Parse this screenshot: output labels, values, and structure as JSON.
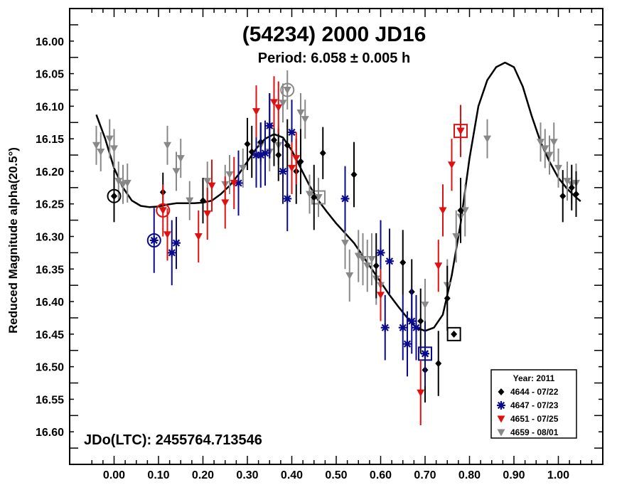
{
  "chart_data": {
    "type": "scatter",
    "title": "(54234) 2000 JD16",
    "subtitle": "Period: 6.058 ± 0.005 h",
    "xlabel": "",
    "ylabel": "Reduced Magnitude alpha(20.5°)",
    "xlim": [
      -0.1,
      1.1
    ],
    "ylim": [
      16.65,
      15.95
    ],
    "y_inverted": true,
    "xticks": [
      "0.00",
      "0.10",
      "0.20",
      "0.30",
      "0.40",
      "0.50",
      "0.60",
      "0.70",
      "0.80",
      "0.90",
      "1.00"
    ],
    "yticks": [
      "16.00",
      "16.05",
      "16.10",
      "16.15",
      "16.20",
      "16.25",
      "16.30",
      "16.35",
      "16.40",
      "16.45",
      "16.50",
      "16.55",
      "16.60"
    ],
    "annotation": "JDo(LTC): 2455764.713546",
    "legend": {
      "position": "bottom-right",
      "title": "Year: 2011",
      "entries": [
        "4644 - 07/22",
        "4647 - 07/23",
        "4651 - 07/25",
        "4659 - 08/01"
      ]
    },
    "colors": {
      "s4644": "#000000",
      "s4647": "#0a0a8c",
      "s4651": "#e01010",
      "s4659": "#888888"
    },
    "fit_curve": [
      [
        -0.04,
        16.113
      ],
      [
        -0.02,
        16.15
      ],
      [
        0.0,
        16.195
      ],
      [
        0.02,
        16.225
      ],
      [
        0.04,
        16.245
      ],
      [
        0.06,
        16.253
      ],
      [
        0.08,
        16.255
      ],
      [
        0.1,
        16.254
      ],
      [
        0.12,
        16.251
      ],
      [
        0.14,
        16.249
      ],
      [
        0.16,
        16.249
      ],
      [
        0.18,
        16.249
      ],
      [
        0.2,
        16.248
      ],
      [
        0.22,
        16.245
      ],
      [
        0.24,
        16.235
      ],
      [
        0.26,
        16.222
      ],
      [
        0.28,
        16.205
      ],
      [
        0.3,
        16.185
      ],
      [
        0.32,
        16.165
      ],
      [
        0.34,
        16.15
      ],
      [
        0.36,
        16.143
      ],
      [
        0.38,
        16.148
      ],
      [
        0.4,
        16.168
      ],
      [
        0.42,
        16.195
      ],
      [
        0.44,
        16.222
      ],
      [
        0.46,
        16.245
      ],
      [
        0.48,
        16.263
      ],
      [
        0.5,
        16.28
      ],
      [
        0.52,
        16.295
      ],
      [
        0.54,
        16.31
      ],
      [
        0.56,
        16.33
      ],
      [
        0.58,
        16.35
      ],
      [
        0.6,
        16.37
      ],
      [
        0.62,
        16.39
      ],
      [
        0.64,
        16.408
      ],
      [
        0.66,
        16.425
      ],
      [
        0.68,
        16.44
      ],
      [
        0.7,
        16.445
      ],
      [
        0.72,
        16.44
      ],
      [
        0.74,
        16.42
      ],
      [
        0.76,
        16.36
      ],
      [
        0.78,
        16.28
      ],
      [
        0.8,
        16.18
      ],
      [
        0.82,
        16.1
      ],
      [
        0.84,
        16.06
      ],
      [
        0.86,
        16.04
      ],
      [
        0.88,
        16.033
      ],
      [
        0.9,
        16.04
      ],
      [
        0.92,
        16.07
      ],
      [
        0.94,
        16.115
      ],
      [
        0.96,
        16.155
      ],
      [
        0.98,
        16.185
      ],
      [
        1.0,
        16.21
      ],
      [
        1.02,
        16.227
      ],
      [
        1.04,
        16.24
      ],
      [
        1.05,
        16.246
      ]
    ],
    "series": [
      {
        "marker": "diamond",
        "color": "#000000",
        "points": [
          [
            0.0,
            16.238,
            0.04
          ],
          [
            0.11,
            16.232,
            0.03
          ],
          [
            0.2,
            16.245,
            0.035
          ],
          [
            0.3,
            16.158,
            0.04
          ],
          [
            0.31,
            16.17,
            0.04
          ],
          [
            0.33,
            16.155,
            0.03
          ],
          [
            0.35,
            16.13,
            0.05
          ],
          [
            0.36,
            16.152,
            0.04
          ],
          [
            0.37,
            16.175,
            0.04
          ],
          [
            0.39,
            16.16,
            0.04
          ],
          [
            0.41,
            16.2,
            0.05
          ],
          [
            0.42,
            16.185,
            0.05
          ],
          [
            0.45,
            16.24,
            0.05
          ],
          [
            0.47,
            16.172,
            0.04
          ],
          [
            0.54,
            16.205,
            0.05
          ],
          [
            0.59,
            16.345,
            0.05
          ],
          [
            0.65,
            16.34,
            0.05
          ],
          [
            0.67,
            16.385,
            0.05
          ],
          [
            0.69,
            16.43,
            0.05
          ],
          [
            0.7,
            16.505,
            0.05
          ],
          [
            0.73,
            16.495,
            0.05
          ],
          [
            0.75,
            16.395,
            0.05
          ],
          [
            0.78,
            16.26,
            0.05
          ],
          [
            1.01,
            16.238,
            0.04
          ],
          [
            1.03,
            16.225,
            0.035
          ],
          [
            1.04,
            16.235,
            0.035
          ]
        ],
        "circled": [
          [
            0.0,
            16.238
          ]
        ],
        "boxed": [
          [
            0.765,
            16.45
          ]
        ]
      },
      {
        "marker": "asterisk",
        "color": "#0a0a8c",
        "points": [
          [
            0.09,
            16.306,
            0.05
          ],
          [
            0.13,
            16.325,
            0.05
          ],
          [
            0.14,
            16.31,
            0.04
          ],
          [
            0.28,
            16.218,
            0.05
          ],
          [
            0.32,
            16.175,
            0.05
          ],
          [
            0.33,
            16.175,
            0.05
          ],
          [
            0.34,
            16.172,
            0.05
          ],
          [
            0.35,
            16.13,
            0.05
          ],
          [
            0.38,
            16.2,
            0.05
          ],
          [
            0.39,
            16.242,
            0.05
          ],
          [
            0.4,
            16.14,
            0.05
          ],
          [
            0.52,
            16.242,
            0.05
          ],
          [
            0.6,
            16.325,
            0.05
          ],
          [
            0.61,
            16.44,
            0.05
          ],
          [
            0.62,
            16.338,
            0.05
          ],
          [
            0.65,
            16.44,
            0.05
          ],
          [
            0.66,
            16.465,
            0.05
          ],
          [
            0.67,
            16.43,
            0.05
          ],
          [
            0.68,
            16.44,
            0.05
          ],
          [
            0.7,
            16.48,
            0.05
          ]
        ],
        "circled": [
          [
            0.09,
            16.306
          ]
        ],
        "boxed": [
          [
            0.7,
            16.48
          ]
        ]
      },
      {
        "marker": "triangle-down",
        "color": "#e01010",
        "points": [
          [
            0.11,
            16.26,
            0.04
          ],
          [
            0.12,
            16.297,
            0.04
          ],
          [
            0.19,
            16.3,
            0.04
          ],
          [
            0.21,
            16.265,
            0.04
          ],
          [
            0.22,
            16.222,
            0.04
          ],
          [
            0.25,
            16.248,
            0.04
          ],
          [
            0.27,
            16.218,
            0.04
          ],
          [
            0.32,
            16.108,
            0.04
          ],
          [
            0.36,
            16.094,
            0.04
          ],
          [
            0.37,
            16.102,
            0.04
          ],
          [
            0.4,
            16.195,
            0.04
          ],
          [
            0.41,
            16.18,
            0.04
          ],
          [
            0.6,
            16.39,
            0.04
          ],
          [
            0.69,
            16.54,
            0.05
          ],
          [
            0.73,
            16.345,
            0.04
          ],
          [
            0.74,
            16.26,
            0.04
          ],
          [
            0.76,
            16.19,
            0.04
          ],
          [
            0.78,
            16.138,
            0.04
          ]
        ],
        "circled": [
          [
            0.11,
            16.26
          ]
        ],
        "boxed": [
          [
            0.78,
            16.138
          ]
        ]
      },
      {
        "marker": "triangle-down",
        "color": "#888888",
        "points": [
          [
            -0.04,
            16.16,
            0.03
          ],
          [
            -0.03,
            16.17,
            0.03
          ],
          [
            -0.01,
            16.15,
            0.03
          ],
          [
            0.0,
            16.165,
            0.03
          ],
          [
            0.01,
            16.215,
            0.03
          ],
          [
            0.02,
            16.22,
            0.03
          ],
          [
            0.03,
            16.218,
            0.03
          ],
          [
            0.12,
            16.16,
            0.03
          ],
          [
            0.14,
            16.2,
            0.03
          ],
          [
            0.15,
            16.18,
            0.03
          ],
          [
            0.17,
            16.245,
            0.03
          ],
          [
            0.21,
            16.215,
            0.03
          ],
          [
            0.25,
            16.22,
            0.03
          ],
          [
            0.26,
            16.205,
            0.03
          ],
          [
            0.29,
            16.195,
            0.03
          ],
          [
            0.33,
            16.16,
            0.03
          ],
          [
            0.35,
            16.17,
            0.03
          ],
          [
            0.37,
            16.16,
            0.03
          ],
          [
            0.38,
            16.095,
            0.03
          ],
          [
            0.39,
            16.075,
            0.03
          ],
          [
            0.42,
            16.11,
            0.03
          ],
          [
            0.43,
            16.12,
            0.03
          ],
          [
            0.44,
            16.235,
            0.03
          ],
          [
            0.46,
            16.24,
            0.03
          ],
          [
            0.52,
            16.31,
            0.04
          ],
          [
            0.53,
            16.36,
            0.04
          ],
          [
            0.55,
            16.33,
            0.04
          ],
          [
            0.56,
            16.335,
            0.04
          ],
          [
            0.57,
            16.345,
            0.04
          ],
          [
            0.58,
            16.335,
            0.04
          ],
          [
            0.59,
            16.365,
            0.04
          ],
          [
            0.6,
            16.375,
            0.04
          ],
          [
            0.7,
            16.405,
            0.04
          ],
          [
            0.75,
            16.375,
            0.04
          ],
          [
            0.77,
            16.3,
            0.04
          ],
          [
            0.78,
            16.27,
            0.04
          ],
          [
            0.79,
            16.26,
            0.04
          ],
          [
            0.84,
            16.15,
            0.03
          ],
          [
            0.96,
            16.155,
            0.03
          ],
          [
            0.97,
            16.165,
            0.03
          ],
          [
            0.98,
            16.175,
            0.03
          ],
          [
            0.99,
            16.155,
            0.03
          ],
          [
            1.0,
            16.195,
            0.03
          ],
          [
            1.02,
            16.215,
            0.03
          ],
          [
            1.03,
            16.22,
            0.03
          ],
          [
            1.04,
            16.218,
            0.03
          ]
        ],
        "circled": [
          [
            0.39,
            16.075
          ]
        ],
        "boxed": [
          [
            0.46,
            16.24
          ]
        ]
      }
    ]
  }
}
